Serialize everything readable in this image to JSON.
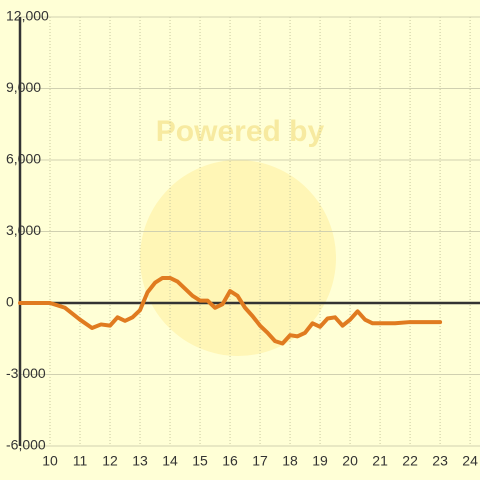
{
  "chart_data": {
    "type": "line",
    "watermark": "Powered by",
    "x": [
      9,
      10,
      10.5,
      11,
      11.4,
      11.7,
      12,
      12.25,
      12.5,
      12.75,
      13,
      13.25,
      13.5,
      13.75,
      14,
      14.25,
      14.5,
      14.75,
      15,
      15.25,
      15.5,
      15.75,
      16,
      16.25,
      16.5,
      16.75,
      17,
      17.25,
      17.5,
      17.75,
      18,
      18.25,
      18.5,
      18.75,
      19,
      19.25,
      19.5,
      19.75,
      20,
      20.25,
      20.5,
      20.75,
      21.5,
      22,
      23
    ],
    "values": [
      0,
      0,
      -200,
      -700,
      -1050,
      -900,
      -950,
      -600,
      -750,
      -600,
      -300,
      450,
      850,
      1050,
      1050,
      900,
      600,
      300,
      100,
      100,
      -200,
      -50,
      500,
      300,
      -200,
      -550,
      -950,
      -1250,
      -1600,
      -1700,
      -1350,
      -1400,
      -1250,
      -850,
      -1000,
      -650,
      -600,
      -950,
      -700,
      -350,
      -700,
      -850,
      -850,
      -800,
      -800
    ],
    "color": "#e07b20",
    "xlim": [
      9,
      24.33
    ],
    "xticks": [
      10,
      11,
      12,
      13,
      14,
      15,
      16,
      17,
      18,
      19,
      20,
      21,
      22,
      23,
      24
    ],
    "ylim": [
      -6000,
      12000
    ],
    "yticks": [
      {
        "value": -6000,
        "label": "-6,000"
      },
      {
        "value": -3000,
        "label": "-3,000"
      },
      0,
      {
        "value": 3000,
        "label": "3,000"
      },
      {
        "value": 6000,
        "label": "6,000"
      },
      {
        "value": 9000,
        "label": "9,000"
      },
      {
        "value": 12000,
        "label": "12,000"
      }
    ],
    "grid": true
  }
}
